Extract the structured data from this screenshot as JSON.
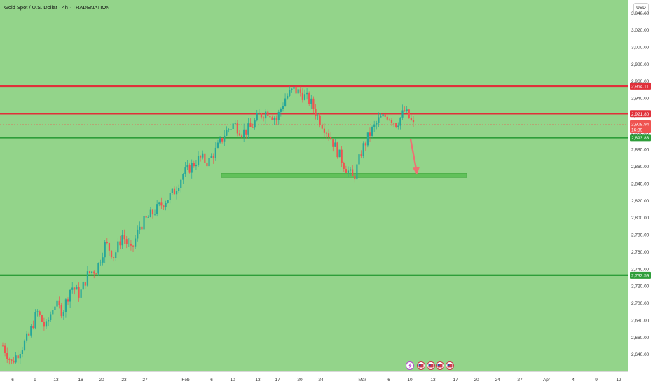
{
  "title": "Gold Spot / U.S. Dollar · 4h · TRADENATION",
  "currency": "USD",
  "chart_data": {
    "type": "candlestick",
    "title": "Gold Spot / U.S. Dollar · 4h · TRADENATION",
    "ylim": [
      2620,
      3055
    ],
    "price_ticks": [
      2640,
      2660,
      2680,
      2700,
      2720,
      2740,
      2760,
      2780,
      2800,
      2820,
      2840,
      2860,
      2880,
      2900,
      2920,
      2940,
      2960,
      2980,
      3000,
      3020,
      3040
    ],
    "price_tick_labels": [
      "2,640.00",
      "2,660.00",
      "2,680.00",
      "2,700.00",
      "2,720.00",
      "2,740.00",
      "2,760.00",
      "2,780.00",
      "2,800.00",
      "2,820.00",
      "2,840.00",
      "2,860.00",
      "2,880.00",
      "2,900.00",
      "2,920.00",
      "2,940.00",
      "2,960.00",
      "2,980.00",
      "3,000.00",
      "3,020.00",
      "3,040.00"
    ],
    "time_ticks": [
      "6",
      "9",
      "13",
      "16",
      "20",
      "23",
      "27",
      "Feb",
      "6",
      "10",
      "13",
      "17",
      "20",
      "24",
      "Mar",
      "6",
      "10",
      "13",
      "17",
      "20",
      "24",
      "27",
      "Apr",
      "4",
      "9",
      "12"
    ],
    "levels": [
      {
        "label": "2,954.11",
        "price": 2954.11,
        "color": "#e0303a"
      },
      {
        "label": "2,921.80",
        "price": 2921.8,
        "color": "#e0303a"
      },
      {
        "label": "2,893.83",
        "price": 2893.83,
        "color": "#2e9e3a"
      },
      {
        "label": "2,732.59",
        "price": 2732.59,
        "color": "#2e9e3a"
      }
    ],
    "last_price": {
      "label": "2,908.94",
      "price": 2908.94,
      "countdown": "16:39",
      "color": "#ef5350"
    },
    "support_zone": {
      "from": 2847,
      "to": 2852,
      "color": "#5cbf55"
    },
    "arrow": {
      "from_price": 2892,
      "to_price": 2852,
      "color": "#ef6f73"
    },
    "up_color": "#26a69a",
    "down_color": "#ef5350",
    "background": "#93d48a",
    "series_approx_closes": [
      2650,
      2630,
      2645,
      2660,
      2690,
      2670,
      2700,
      2690,
      2720,
      2710,
      2735,
      2740,
      2770,
      2755,
      2780,
      2760,
      2790,
      2800,
      2810,
      2820,
      2830,
      2850,
      2860,
      2870,
      2865,
      2880,
      2900,
      2910,
      2900,
      2905,
      2920,
      2925,
      2915,
      2940,
      2950,
      2945,
      2935,
      2915,
      2900,
      2880,
      2860,
      2845,
      2880,
      2900,
      2915,
      2920,
      2910,
      2925,
      2908
    ]
  }
}
